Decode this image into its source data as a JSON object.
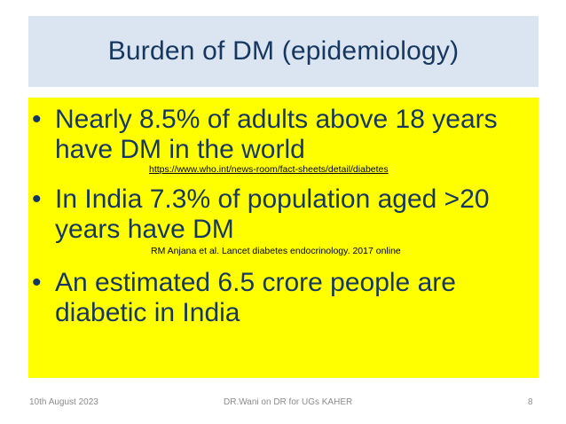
{
  "slide": {
    "title": "Burden of DM (epidemiology)",
    "bullets": [
      {
        "text": "Nearly 8.5% of adults above 18 years have DM in the world",
        "citation": "https://www.who.int/news-room/fact-sheets/detail/diabetes",
        "citation_is_link": true
      },
      {
        "text": "In India 7.3%  of population aged >20 years  have DM",
        "citation": "RM Anjana et al. Lancet diabetes endocrinology. 2017 online",
        "citation_is_link": false
      },
      {
        "text": "An estimated 6.5 crore people are diabetic in India"
      }
    ],
    "bullet_char": "•",
    "footer": {
      "date": "10th August 2023",
      "center": "DR.Wani  on DR for UGs  KAHER",
      "page_number": "8"
    }
  },
  "colors": {
    "title_background": "#dbe5f1",
    "content_background": "#ffff00",
    "text": "#17375e",
    "footer_text": "#8c8c8c"
  }
}
